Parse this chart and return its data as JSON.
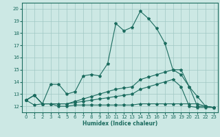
{
  "title": "",
  "xlabel": "Humidex (Indice chaleur)",
  "background_color": "#cce8e4",
  "grid_color": "#a0c8c4",
  "line_color": "#1a6b5e",
  "xlim": [
    -0.5,
    23.5
  ],
  "ylim": [
    11.5,
    20.5
  ],
  "yticks": [
    12,
    13,
    14,
    15,
    16,
    17,
    18,
    19,
    20
  ],
  "xticks": [
    0,
    1,
    2,
    3,
    4,
    5,
    6,
    7,
    8,
    9,
    10,
    11,
    12,
    13,
    14,
    15,
    16,
    17,
    18,
    19,
    20,
    21,
    22,
    23
  ],
  "series": [
    [
      12.5,
      12.9,
      12.2,
      13.8,
      13.8,
      13.0,
      13.2,
      14.5,
      14.6,
      14.5,
      15.5,
      18.8,
      18.2,
      18.5,
      19.8,
      19.2,
      18.4,
      17.2,
      15.0,
      14.6,
      13.6,
      12.8,
      12.0,
      11.9
    ],
    [
      12.5,
      12.1,
      12.2,
      12.2,
      12.0,
      12.0,
      12.1,
      12.1,
      12.1,
      12.1,
      12.1,
      12.1,
      12.1,
      12.1,
      12.2,
      12.2,
      12.2,
      12.2,
      12.2,
      12.2,
      12.2,
      12.2,
      12.0,
      11.9
    ],
    [
      12.5,
      12.9,
      12.2,
      12.2,
      12.2,
      12.2,
      12.3,
      12.4,
      12.5,
      12.6,
      12.7,
      12.8,
      12.9,
      13.0,
      13.4,
      13.6,
      13.8,
      14.0,
      14.2,
      13.6,
      12.0,
      11.9,
      11.9,
      11.9
    ],
    [
      12.5,
      12.9,
      12.2,
      12.2,
      12.2,
      12.2,
      12.4,
      12.6,
      12.8,
      13.0,
      13.2,
      13.4,
      13.5,
      13.6,
      14.2,
      14.4,
      14.6,
      14.8,
      15.0,
      15.0,
      13.6,
      12.0,
      12.0,
      11.9
    ]
  ]
}
